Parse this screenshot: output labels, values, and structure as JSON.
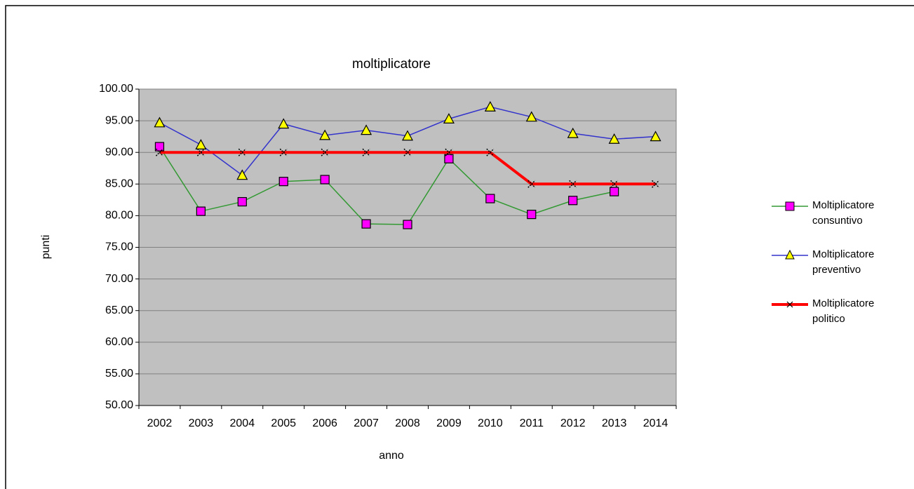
{
  "chart_data": {
    "type": "line",
    "title": "moltiplicatore",
    "x_label": "anno",
    "y_label": "punti",
    "categories": [
      "2002",
      "2003",
      "2004",
      "2005",
      "2006",
      "2007",
      "2008",
      "2009",
      "2010",
      "2011",
      "2012",
      "2013",
      "2014"
    ],
    "series": [
      {
        "name": "Moltiplicatore consuntivo",
        "color": "#339933",
        "marker": "square",
        "marker_color": "#ff00ff",
        "line_width": 1.5,
        "values": [
          90.9,
          80.7,
          82.2,
          85.4,
          85.7,
          78.7,
          78.6,
          89.0,
          82.7,
          80.2,
          82.4,
          83.8,
          null
        ]
      },
      {
        "name": "Moltiplicatore preventivo",
        "color": "#3333cc",
        "marker": "triangle",
        "marker_color": "#ffff00",
        "line_width": 1.5,
        "values": [
          94.7,
          91.2,
          86.4,
          94.5,
          92.7,
          93.5,
          92.6,
          95.3,
          97.2,
          95.6,
          93.0,
          92.1,
          92.5
        ]
      },
      {
        "name": "Moltiplicatore politico",
        "color": "#ff0000",
        "marker": "x",
        "marker_color": "#000000",
        "line_width": 4,
        "values": [
          90,
          90,
          90,
          90,
          90,
          90,
          90,
          90,
          90,
          85,
          85,
          85,
          85
        ]
      }
    ],
    "ylim": [
      50,
      100
    ],
    "yticks": [
      {
        "value": 50,
        "label": "50.00"
      },
      {
        "value": 55,
        "label": "55.00"
      },
      {
        "value": 60,
        "label": "60.00"
      },
      {
        "value": 65,
        "label": "65.00"
      },
      {
        "value": 70,
        "label": "70.00"
      },
      {
        "value": 75,
        "label": "75.00"
      },
      {
        "value": 80,
        "label": "80.00"
      },
      {
        "value": 85,
        "label": "85.00"
      },
      {
        "value": 90,
        "label": "90.00"
      },
      {
        "value": 95,
        "label": "95.00"
      },
      {
        "value": 100,
        "label": "100.00"
      }
    ],
    "grid": true,
    "plot_background": "#c0c0c0",
    "legend": "right"
  }
}
